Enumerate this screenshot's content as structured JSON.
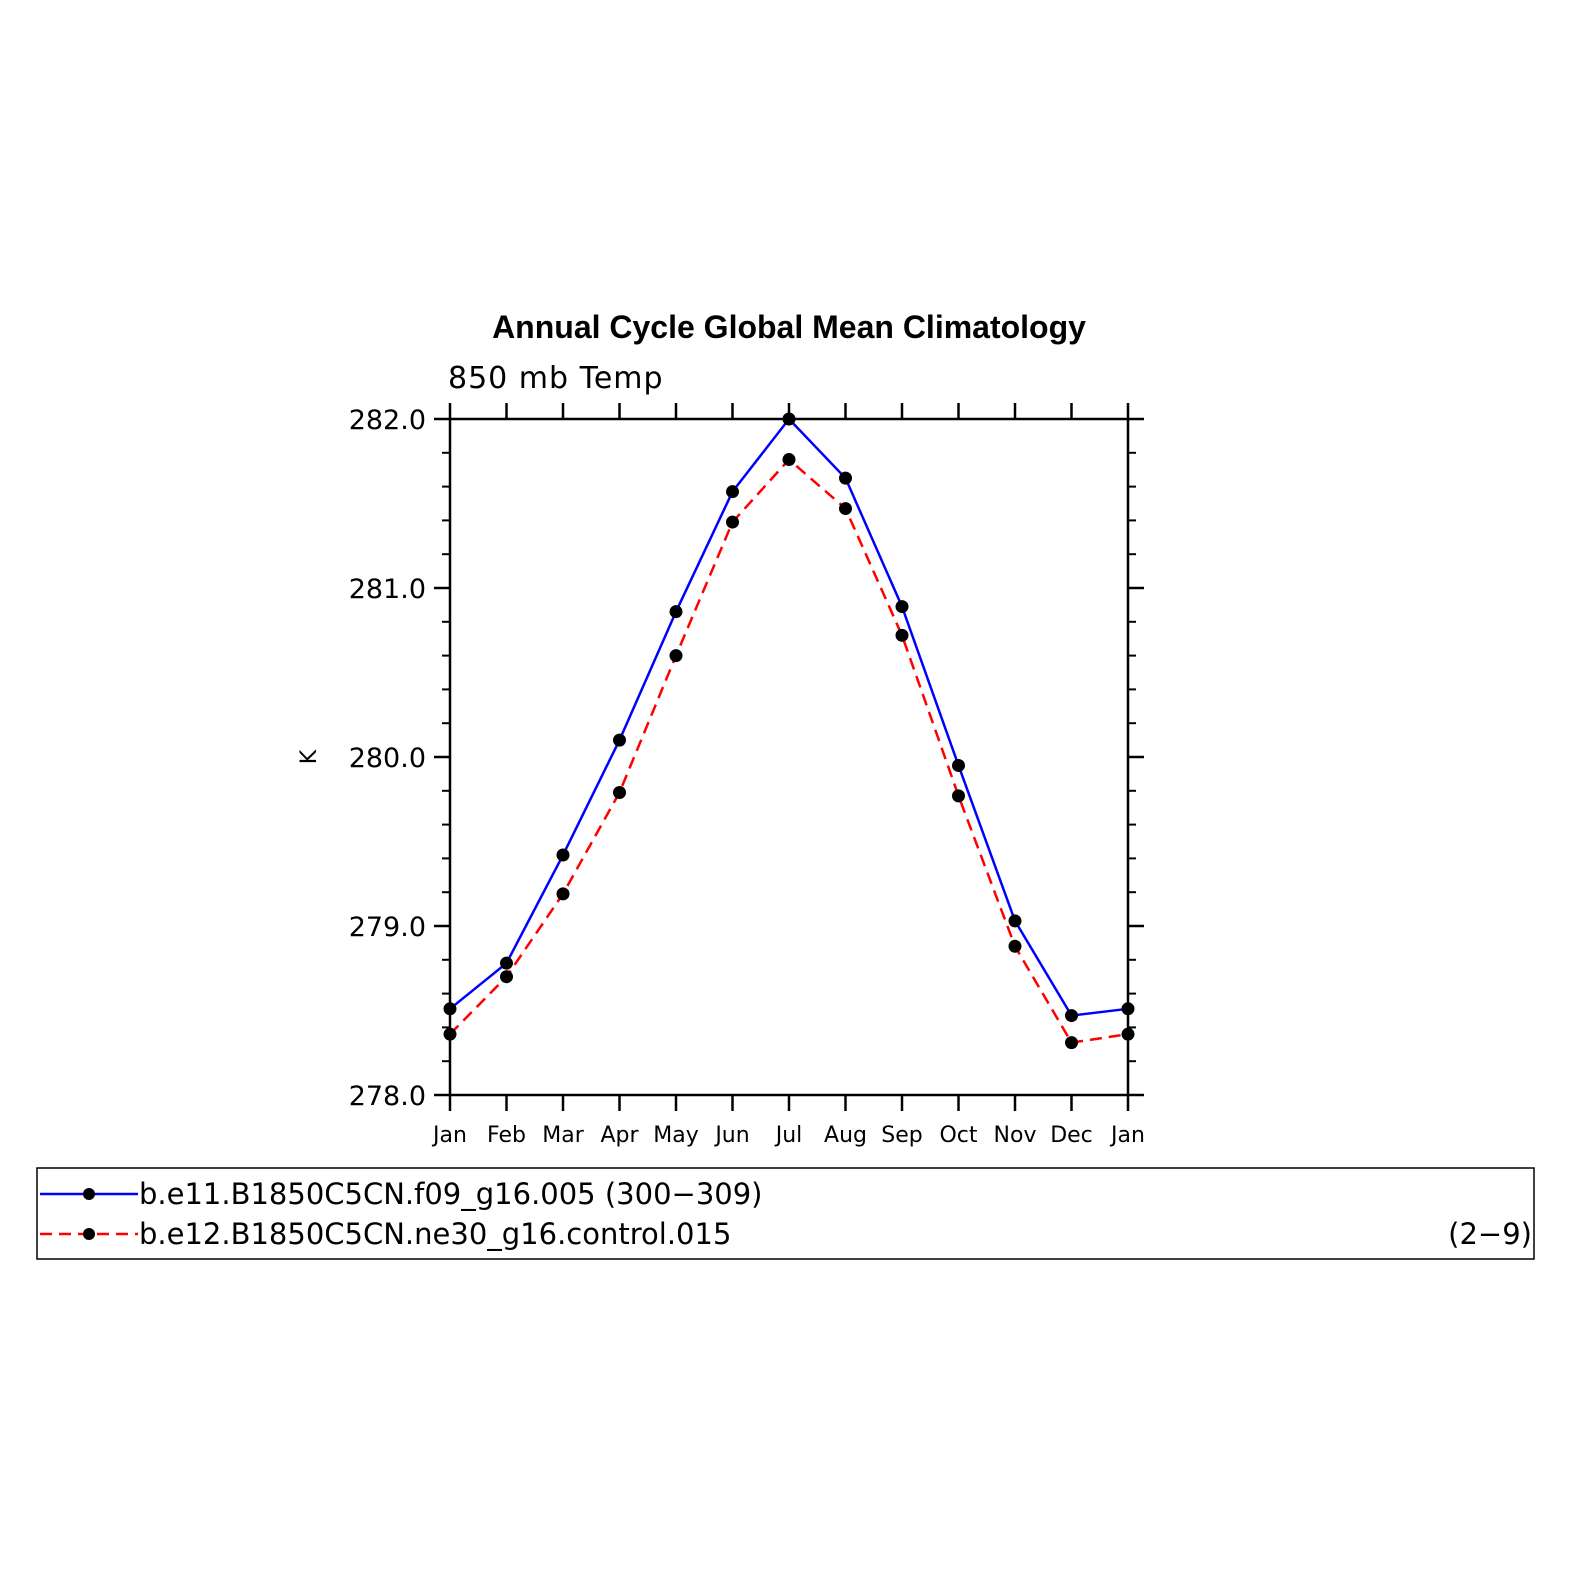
{
  "chart_data": {
    "type": "line",
    "title": "Annual Cycle Global Mean Climatology",
    "subtitle": "850 mb Temp",
    "ylabel": "K",
    "xlabel": "",
    "categories": [
      "Jan",
      "Feb",
      "Mar",
      "Apr",
      "May",
      "Jun",
      "Jul",
      "Aug",
      "Sep",
      "Oct",
      "Nov",
      "Dec",
      "Jan"
    ],
    "ylim": [
      278.0,
      282.0
    ],
    "yticks": [
      278.0,
      279.0,
      280.0,
      281.0,
      282.0
    ],
    "ytick_labels": [
      "278.0",
      "279.0",
      "280.0",
      "281.0",
      "282.0"
    ],
    "grid": false,
    "legend_position": "bottom",
    "series": [
      {
        "name": "b.e11.B1850C5CN.f09_g16.005 (300−309)",
        "color": "#0000ff",
        "line_style": "solid",
        "marker": "circle",
        "values": [
          278.51,
          278.78,
          279.42,
          280.1,
          280.86,
          281.57,
          282.0,
          281.65,
          280.89,
          279.95,
          279.03,
          278.47,
          278.51
        ]
      },
      {
        "name": "b.e12.B1850C5CN.ne30_g16.control.015",
        "name_suffix": "(2−9)",
        "color": "#ff0000",
        "line_style": "dashed",
        "marker": "circle",
        "values": [
          278.36,
          278.7,
          279.19,
          279.79,
          280.6,
          281.39,
          281.76,
          281.47,
          280.72,
          279.77,
          278.88,
          278.31,
          278.36
        ]
      }
    ]
  }
}
